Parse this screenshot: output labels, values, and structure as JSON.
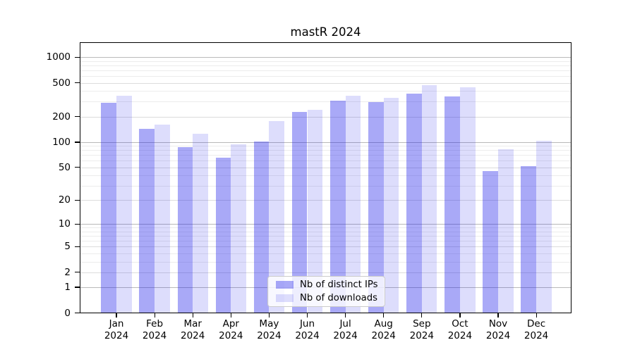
{
  "figure": {
    "title": "mastR 2024"
  },
  "chart_data": {
    "type": "bar",
    "title": "mastR 2024",
    "categories": [
      "Jan",
      "Feb",
      "Mar",
      "Apr",
      "May",
      "Jun",
      "Jul",
      "Aug",
      "Sep",
      "Oct",
      "Nov",
      "Dec"
    ],
    "category_year": "2024",
    "series": [
      {
        "name": "Nb of distinct IPs",
        "color": "#a9a9f4",
        "fill": "rgba(28,28,234,0.38)",
        "values": [
          290,
          145,
          88,
          65,
          102,
          226,
          310,
          295,
          370,
          345,
          45,
          52
        ]
      },
      {
        "name": "Nb of downloads",
        "color": "#ddddfb",
        "fill": "rgba(28,28,234,0.15)",
        "values": [
          355,
          160,
          126,
          94,
          176,
          243,
          350,
          330,
          465,
          445,
          82,
          103
        ]
      }
    ],
    "yscale": "log1p",
    "ylim": [
      0,
      1500
    ],
    "yticks": [
      0,
      1,
      2,
      5,
      10,
      20,
      50,
      100,
      200,
      500,
      1000
    ],
    "grid": true,
    "legend_position": "bottom-center",
    "colors": {
      "axis": "#000000",
      "grid_major": "#b9b9b9",
      "grid_mid": "#dcdcdc",
      "grid_minor": "#ececec",
      "background": "#ffffff"
    }
  }
}
